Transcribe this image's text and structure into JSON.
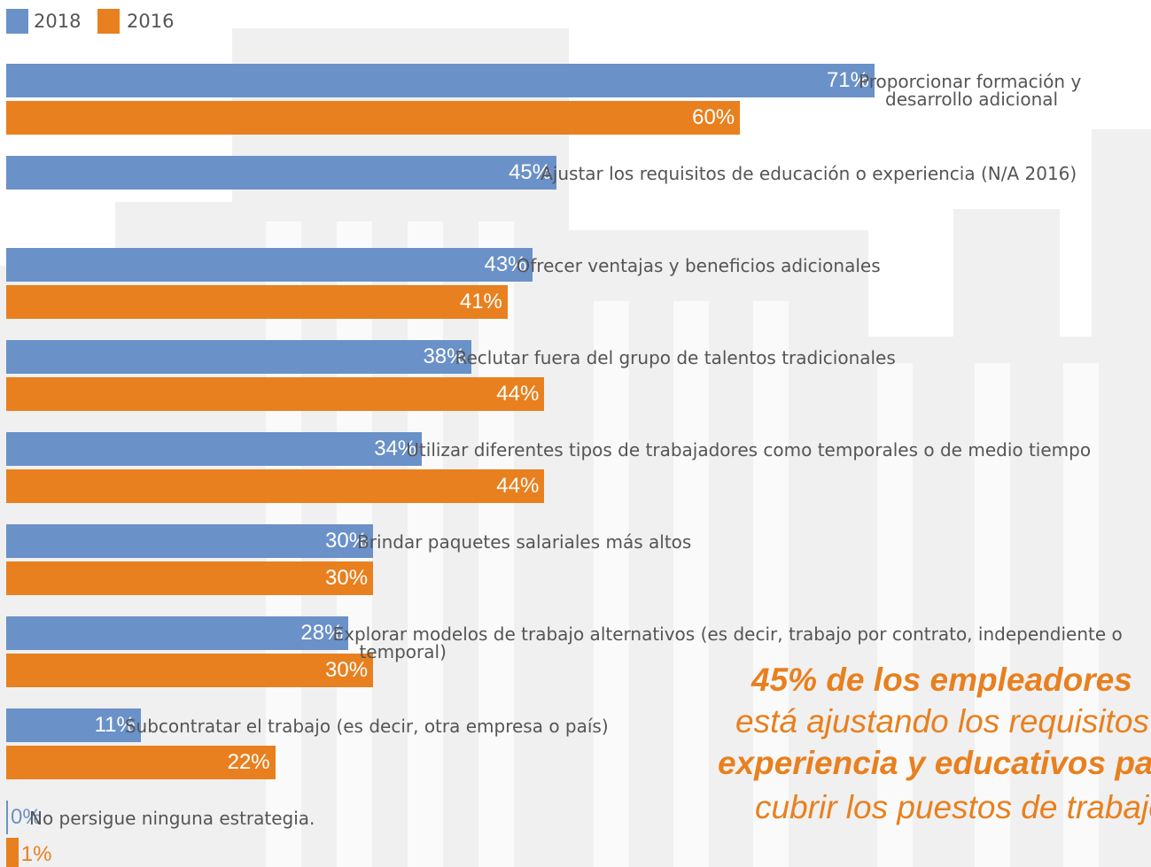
{
  "chart_data": {
    "type": "bar",
    "orientation": "horizontal",
    "legend": "top-left",
    "categories": [
      "Proporcionar formación y desarrollo adicional",
      "Ajustar los requisitos de educación o experiencia (N/A 2016)",
      "Ofrecer ventajas y beneficios adicionales",
      "Reclutar fuera del grupo de talentos tradicionales",
      "Utilizar diferentes tipos de trabajadores como temporales o de medio tiempo",
      "Brindar paquetes salariales más altos",
      "Explorar modelos de trabajo alternativos (es decir, trabajo por contrato, independiente o temporal)",
      "Subcontratar el trabajo (es decir, otra empresa o país)",
      "No persigue ninguna estrategia."
    ],
    "series": [
      {
        "name": "2018",
        "color": "#6a91c8",
        "values": [
          71,
          45,
          43,
          38,
          34,
          30,
          28,
          11,
          0
        ],
        "value_labels": [
          "71%",
          "45%",
          "43%",
          "38%",
          "34%",
          "30%",
          "28%",
          "11%",
          "0%"
        ]
      },
      {
        "name": "2016",
        "color": "#e8801f",
        "values": [
          60,
          null,
          41,
          44,
          44,
          30,
          30,
          22,
          1
        ],
        "value_labels": [
          "60%",
          null,
          "41%",
          "44%",
          "44%",
          "30%",
          "30%",
          "22%",
          "1%"
        ]
      }
    ],
    "annotation": [
      "45% de los empleadores",
      "está ajustando los requisitos de",
      "experiencia y educativos para",
      "cubrir los puestos de trabajo"
    ]
  }
}
